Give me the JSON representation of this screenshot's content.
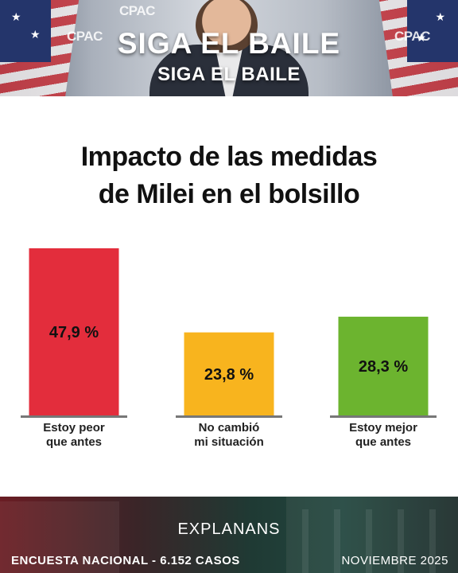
{
  "banner": {
    "title": "SIGA EL BAILE",
    "subtitle": "SIGA EL BAILE",
    "logo_text": "CPAC"
  },
  "title": {
    "line1": "Impacto de las medidas",
    "line2": "de Milei en el bolsillo"
  },
  "chart_data": {
    "type": "bar",
    "categories": [
      [
        "Estoy peor",
        "que antes"
      ],
      [
        "No cambió",
        "mi situación"
      ],
      [
        "Estoy mejor",
        "que antes"
      ]
    ],
    "values": [
      47.9,
      23.8,
      28.3
    ],
    "value_labels": [
      "47,9 %",
      "23,8 %",
      "28,3 %"
    ],
    "colors": [
      "#e32d3c",
      "#f8b41e",
      "#6cb42f"
    ],
    "ylim": [
      0,
      50
    ],
    "grid": false,
    "legend": false
  },
  "footer": {
    "brand": "EXPLANANS",
    "survey": "ENCUESTA NACIONAL - 6.152 CASOS",
    "date": "NOVIEMBRE 2025"
  }
}
